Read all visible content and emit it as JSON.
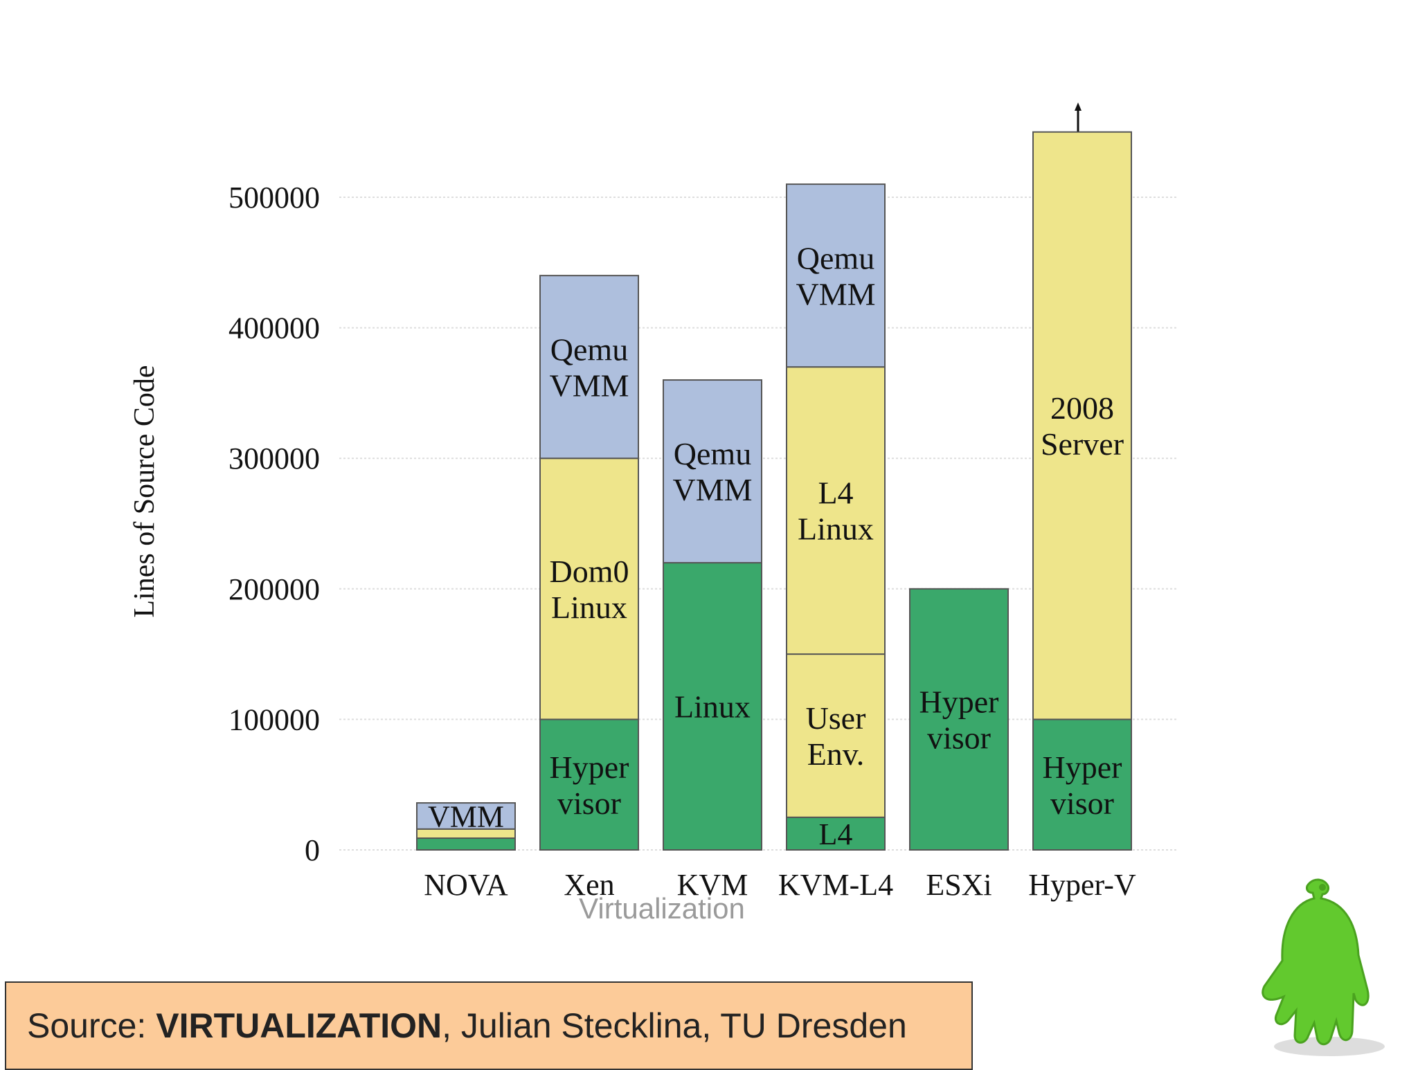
{
  "chart_data": {
    "type": "bar",
    "stacked": true,
    "ylabel": "Lines of Source Code",
    "xlabel": "Virtualization",
    "ylim": [
      0,
      550000
    ],
    "yticks": [
      0,
      100000,
      200000,
      300000,
      400000,
      500000
    ],
    "grid": true,
    "categories": [
      "NOVA",
      "Xen",
      "KVM",
      "KVM-L4",
      "ESXi",
      "Hyper-V"
    ],
    "bars": [
      {
        "category": "NOVA",
        "segments": [
          {
            "label": "",
            "value": 9000,
            "color": "#3aa86b"
          },
          {
            "label": "",
            "value": 7000,
            "color": "#eee58b"
          },
          {
            "label": "VMM",
            "value": 20000,
            "color": "#aebfdd"
          }
        ]
      },
      {
        "category": "Xen",
        "segments": [
          {
            "label": "Hyper visor",
            "value": 100000,
            "color": "#3aa86b"
          },
          {
            "label": "Dom0 Linux",
            "value": 200000,
            "color": "#eee58b"
          },
          {
            "label": "Qemu VMM",
            "value": 140000,
            "color": "#aebfdd"
          }
        ]
      },
      {
        "category": "KVM",
        "segments": [
          {
            "label": "Linux",
            "value": 220000,
            "color": "#3aa86b"
          },
          {
            "label": "Qemu VMM",
            "value": 140000,
            "color": "#aebfdd"
          }
        ]
      },
      {
        "category": "KVM-L4",
        "segments": [
          {
            "label": "L4",
            "value": 25000,
            "color": "#3aa86b"
          },
          {
            "label": "User Env.",
            "value": 125000,
            "color": "#eee58b"
          },
          {
            "label": "L4 Linux",
            "value": 220000,
            "color": "#eee58b"
          },
          {
            "label": "Qemu VMM",
            "value": 140000,
            "color": "#aebfdd"
          }
        ]
      },
      {
        "category": "ESXi",
        "segments": [
          {
            "label": "Hyper visor",
            "value": 200000,
            "color": "#3aa86b"
          }
        ]
      },
      {
        "category": "Hyper-V",
        "segments": [
          {
            "label": "Hyper visor",
            "value": 100000,
            "color": "#3aa86b"
          },
          {
            "label": "2008 Server",
            "value": 450000,
            "color": "#eee58b"
          }
        ]
      }
    ]
  },
  "source": {
    "prefix": "Source: ",
    "title": "VIRTUALIZATION",
    "suffix": ", Julian Stecklina, TU Dresden"
  },
  "colors": {
    "source_background": "#fccb99",
    "mascot": "#62c92e"
  },
  "icons": {
    "mascot": "green-android-mascot-icon"
  }
}
